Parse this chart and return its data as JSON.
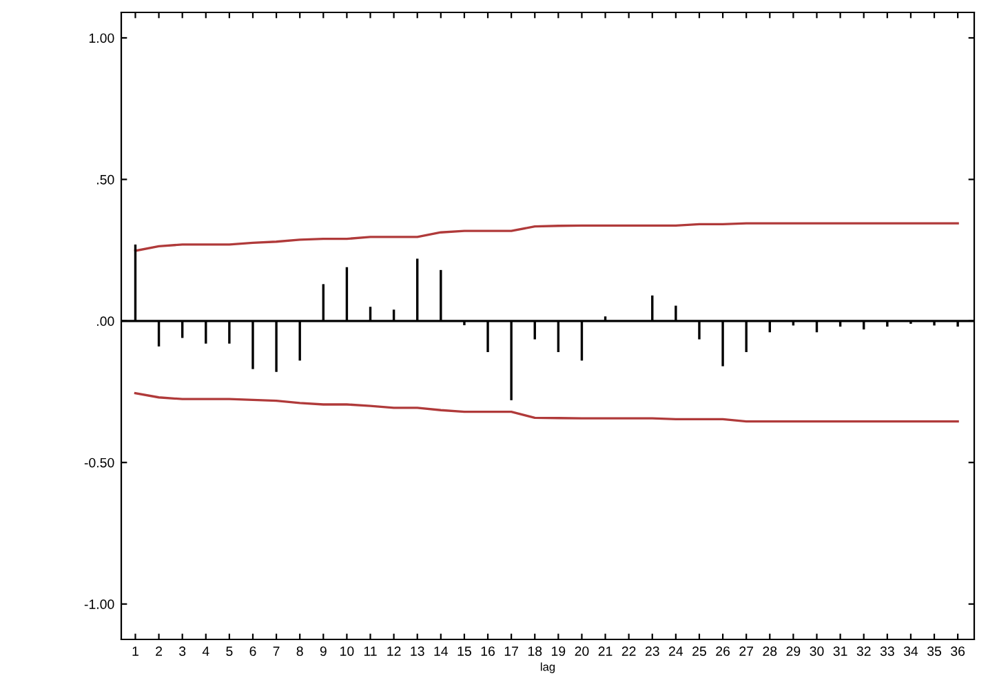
{
  "chart_data": {
    "type": "bar",
    "xlabel": "lag",
    "categories": [
      "1",
      "2",
      "3",
      "4",
      "5",
      "6",
      "7",
      "8",
      "9",
      "10",
      "11",
      "12",
      "13",
      "14",
      "15",
      "16",
      "17",
      "18",
      "19",
      "20",
      "21",
      "22",
      "23",
      "24",
      "25",
      "26",
      "27",
      "28",
      "29",
      "30",
      "31",
      "32",
      "33",
      "34",
      "35",
      "36"
    ],
    "series": [
      {
        "color": "#000000",
        "values": [
          0.27,
          -0.09,
          -0.06,
          -0.08,
          -0.08,
          -0.17,
          -0.18,
          -0.14,
          0.13,
          0.19,
          0.05,
          0.04,
          0.22,
          0.18,
          -0.015,
          -0.11,
          -0.28,
          -0.065,
          -0.11,
          -0.14,
          0.016,
          null,
          0.09,
          0.054,
          -0.065,
          -0.16,
          -0.11,
          -0.04,
          -0.016,
          -0.04,
          -0.02,
          -0.03,
          -0.02,
          -0.01,
          -0.016,
          -0.02
        ]
      },
      {
        "type": "line",
        "color": "#b03a3a",
        "values": [
          0.248,
          0.264,
          0.27,
          0.27,
          0.27,
          0.276,
          0.28,
          0.287,
          0.29,
          0.29,
          0.297,
          0.297,
          0.297,
          0.313,
          0.318,
          0.318,
          0.318,
          0.334,
          0.336,
          0.337,
          0.337,
          0.337,
          0.337,
          0.337,
          0.342,
          0.342,
          0.345,
          0.345,
          0.345,
          0.345,
          0.345,
          0.345,
          0.345,
          0.345,
          0.345,
          0.345
        ]
      },
      {
        "type": "line",
        "color": "#b03a3a",
        "values": [
          -0.255,
          -0.27,
          -0.276,
          -0.276,
          -0.276,
          -0.279,
          -0.282,
          -0.29,
          -0.295,
          -0.295,
          -0.3,
          -0.307,
          -0.307,
          -0.315,
          -0.321,
          -0.321,
          -0.321,
          -0.342,
          -0.343,
          -0.344,
          -0.344,
          -0.344,
          -0.344,
          -0.347,
          -0.347,
          -0.347,
          -0.355,
          -0.355,
          -0.355,
          -0.355,
          -0.355,
          -0.355,
          -0.355,
          -0.355,
          -0.355,
          -0.355
        ]
      }
    ],
    "ylim": [
      -1.125,
      1.09
    ],
    "yticks": [
      {
        "value": 1.0,
        "label": "1.00"
      },
      {
        "value": 0.5,
        "label": ".50"
      },
      {
        "value": 0.0,
        "label": ".00"
      },
      {
        "value": -0.5,
        "label": "-0.50"
      },
      {
        "value": -1.0,
        "label": "-1.00"
      }
    ],
    "ref_lines": [
      {
        "axis": "y",
        "value": 0,
        "color": "#000000"
      }
    ],
    "grid": false,
    "legend": false
  }
}
